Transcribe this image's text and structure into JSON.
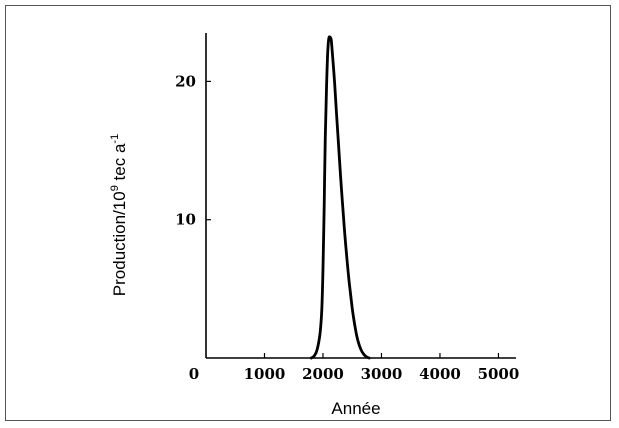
{
  "chart_data": {
    "type": "line",
    "title": "",
    "xlabel": "Année",
    "ylabel": {
      "prefix": "Production/10",
      "exp1": "9",
      "middle": " tec a",
      "exp2": "-1"
    },
    "xlim": [
      0,
      5300
    ],
    "ylim": [
      0,
      23.5
    ],
    "x_ticks": [
      {
        "value": 0,
        "label": "0"
      },
      {
        "value": 1000,
        "label": "1000"
      },
      {
        "value": 2000,
        "label": "2000"
      },
      {
        "value": 3000,
        "label": "3000"
      },
      {
        "value": 4000,
        "label": "4000"
      },
      {
        "value": 5000,
        "label": "5000"
      }
    ],
    "y_ticks": [
      {
        "value": 10,
        "label": "10"
      },
      {
        "value": 20,
        "label": "20"
      }
    ],
    "grid": false,
    "legend": "none",
    "series": [
      {
        "color": "#000000",
        "x": [
          1800,
          1850,
          1900,
          1950,
          1980,
          2000,
          2020,
          2040,
          2060,
          2080,
          2100,
          2120,
          2140,
          2160,
          2180,
          2200,
          2230,
          2260,
          2300,
          2350,
          2400,
          2450,
          2500,
          2550,
          2600,
          2650,
          2700,
          2750,
          2790
        ],
        "y": [
          0,
          0.15,
          0.6,
          1.8,
          3.5,
          6.5,
          11,
          16,
          19.5,
          22.1,
          23.1,
          23.2,
          23.0,
          22.1,
          21.0,
          19.8,
          17.8,
          15.8,
          13.2,
          10.2,
          7.6,
          5.4,
          3.6,
          2.2,
          1.2,
          0.6,
          0.25,
          0.07,
          0
        ]
      }
    ]
  }
}
